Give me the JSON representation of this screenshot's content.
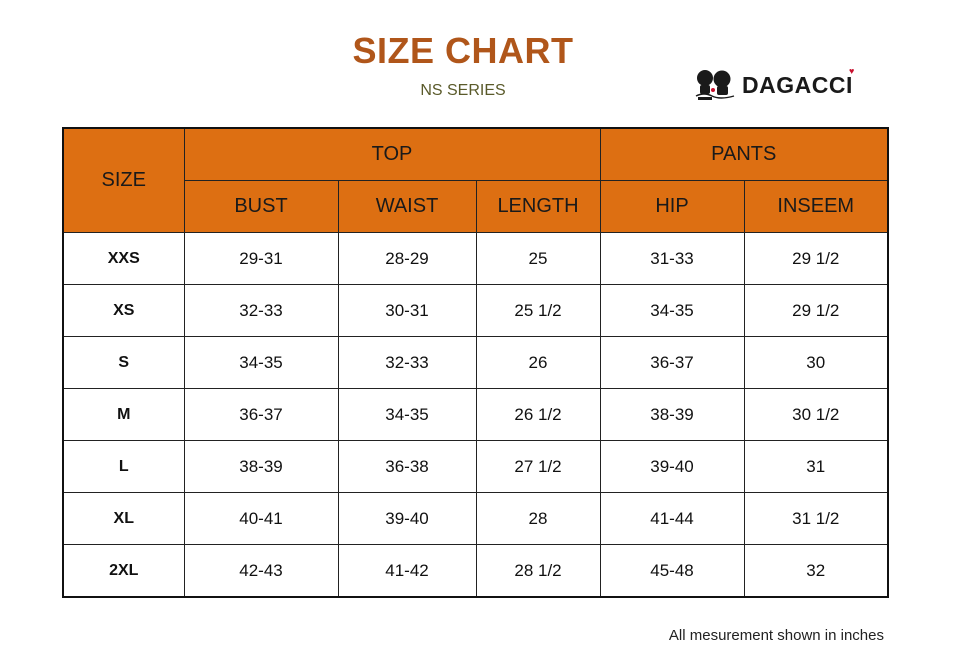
{
  "title": "SIZE CHART",
  "subtitle": "NS SERIES",
  "brand": {
    "name": "DAGACCI",
    "logo_icon": "two-figures-logo-icon",
    "heart_icon": "heart-icon",
    "heart_color": "#c8102e"
  },
  "colors": {
    "title": "#b0561a",
    "header_fill": "#dd6f12"
  },
  "table": {
    "size_header": "SIZE",
    "groups": [
      {
        "label": "TOP"
      },
      {
        "label": "PANTS"
      }
    ],
    "columns": [
      "BUST",
      "WAIST",
      "LENGTH",
      "HIP",
      "INSEEM"
    ],
    "rows": [
      {
        "size": "XXS",
        "bust": "29-31",
        "waist": "28-29",
        "length": "25",
        "hip": "31-33",
        "inseem": "29 1/2"
      },
      {
        "size": "XS",
        "bust": "32-33",
        "waist": "30-31",
        "length": "25 1/2",
        "hip": "34-35",
        "inseem": "29 1/2"
      },
      {
        "size": "S",
        "bust": "34-35",
        "waist": "32-33",
        "length": "26",
        "hip": "36-37",
        "inseem": "30"
      },
      {
        "size": "M",
        "bust": "36-37",
        "waist": "34-35",
        "length": "26 1/2",
        "hip": "38-39",
        "inseem": "30 1/2"
      },
      {
        "size": "L",
        "bust": "38-39",
        "waist": "36-38",
        "length": "27 1/2",
        "hip": "39-40",
        "inseem": "31"
      },
      {
        "size": "XL",
        "bust": "40-41",
        "waist": "39-40",
        "length": "28",
        "hip": "41-44",
        "inseem": "31 1/2"
      },
      {
        "size": "2XL",
        "bust": "42-43",
        "waist": "41-42",
        "length": "28 1/2",
        "hip": "45-48",
        "inseem": "32"
      }
    ]
  },
  "footnote": "All mesurement shown in inches"
}
